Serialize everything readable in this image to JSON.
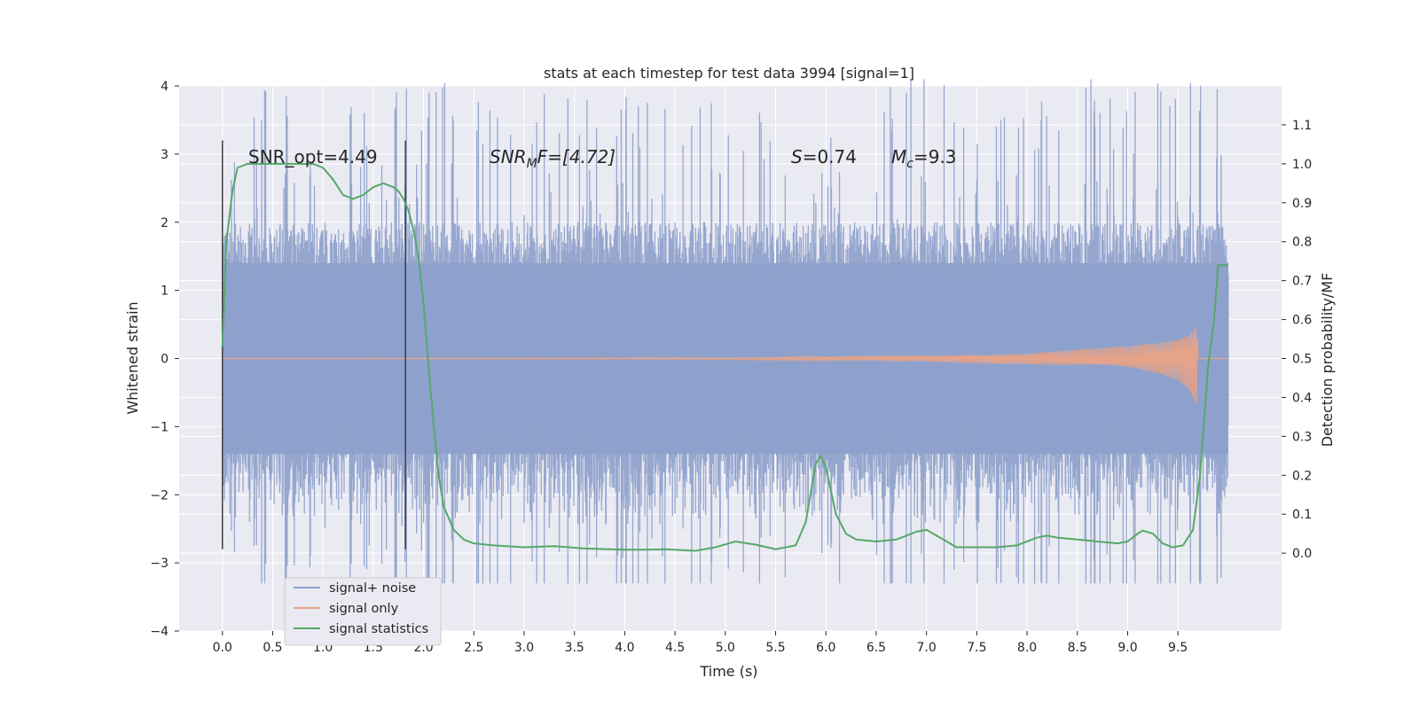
{
  "chart_data": {
    "type": "line",
    "title": "stats at each timestep for test data 3994 [signal=1]",
    "xlabel": "Time (s)",
    "ylabel": "Whitened strain",
    "y2label": "Detection probability/MF",
    "xlim": [
      -0.43,
      10.53
    ],
    "ylim": [
      -4.0,
      4.0
    ],
    "y2lim": [
      -0.2,
      1.2
    ],
    "xticks": [
      "0.0",
      "0.5",
      "1.0",
      "1.5",
      "2.0",
      "2.5",
      "3.0",
      "3.5",
      "4.0",
      "4.5",
      "5.0",
      "5.5",
      "6.0",
      "6.5",
      "7.0",
      "7.5",
      "8.0",
      "8.5",
      "9.0",
      "9.5"
    ],
    "yticks": [
      "4",
      "3",
      "2",
      "1",
      "0",
      "−1",
      "−2",
      "−3",
      "−4"
    ],
    "y2ticks": [
      "1.1",
      "1.0",
      "0.9",
      "0.8",
      "0.7",
      "0.6",
      "0.5",
      "0.4",
      "0.3",
      "0.2",
      "0.1",
      "0.0"
    ],
    "grid": true,
    "legend_position": "lower-left",
    "annotations": {
      "snr_opt": "SNR_opt=4.49",
      "snr_mf_main": "SNR",
      "snr_mf_sub": "M",
      "snr_mf_rest": "F=[4.72]",
      "s_main": "S",
      "s_rest": "=0.74",
      "mc_main": "M",
      "mc_sub": "c",
      "mc_rest": "=9.3"
    },
    "markers": [
      {
        "x": 0.0,
        "y_range": [
          -2.8,
          3.2
        ]
      },
      {
        "x": 1.82,
        "y_range": [
          -2.8,
          3.2
        ]
      }
    ],
    "series": [
      {
        "name": "signal+ noise",
        "color": "#8da0cb",
        "x_range": [
          0.0,
          10.0
        ],
        "samples": 2000,
        "core_amplitude": 2.0,
        "peak_envelope": [
          -3.3,
          4.1
        ]
      },
      {
        "name": "signal only",
        "color": "#e5a389",
        "x_range": [
          0.0,
          10.0
        ],
        "envelope_x": [
          0.0,
          5.0,
          6.0,
          7.0,
          8.0,
          8.5,
          9.0,
          9.3,
          9.5,
          9.6,
          9.65,
          9.69,
          9.7,
          10.0
        ],
        "envelope_amp": [
          0.0,
          0.01,
          0.03,
          0.05,
          0.09,
          0.13,
          0.18,
          0.25,
          0.34,
          0.45,
          0.58,
          0.72,
          0.0,
          0.0
        ]
      },
      {
        "name": "signal statistics",
        "color": "#55a868",
        "x": [
          0.0,
          0.04,
          0.1,
          0.15,
          0.25,
          0.4,
          0.6,
          0.8,
          0.9,
          1.0,
          1.1,
          1.2,
          1.3,
          1.4,
          1.5,
          1.6,
          1.7,
          1.75,
          1.8,
          1.85,
          1.9,
          1.95,
          2.0,
          2.05,
          2.1,
          2.15,
          2.2,
          2.3,
          2.4,
          2.5,
          2.7,
          3.0,
          3.3,
          3.6,
          4.0,
          4.2,
          4.4,
          4.7,
          4.9,
          5.1,
          5.3,
          5.5,
          5.7,
          5.8,
          5.9,
          5.95,
          6.0,
          6.1,
          6.2,
          6.3,
          6.5,
          6.7,
          6.9,
          7.0,
          7.1,
          7.3,
          7.5,
          7.7,
          7.9,
          8.1,
          8.2,
          8.3,
          8.5,
          8.7,
          8.9,
          9.0,
          9.1,
          9.15,
          9.25,
          9.35,
          9.45,
          9.55,
          9.65,
          9.72,
          9.8,
          9.86,
          9.9,
          9.95,
          10.0
        ],
        "y": [
          0.53,
          0.8,
          0.93,
          0.99,
          1.0,
          1.0,
          1.0,
          1.0,
          1.0,
          0.99,
          0.96,
          0.92,
          0.91,
          0.92,
          0.94,
          0.95,
          0.94,
          0.93,
          0.91,
          0.88,
          0.83,
          0.76,
          0.64,
          0.48,
          0.33,
          0.2,
          0.12,
          0.06,
          0.035,
          0.025,
          0.02,
          0.015,
          0.018,
          0.012,
          0.009,
          0.009,
          0.01,
          0.006,
          0.015,
          0.03,
          0.022,
          0.01,
          0.02,
          0.08,
          0.23,
          0.25,
          0.22,
          0.1,
          0.05,
          0.035,
          0.03,
          0.035,
          0.055,
          0.06,
          0.045,
          0.015,
          0.015,
          0.015,
          0.02,
          0.04,
          0.045,
          0.04,
          0.035,
          0.03,
          0.025,
          0.03,
          0.05,
          0.058,
          0.05,
          0.025,
          0.015,
          0.02,
          0.06,
          0.2,
          0.48,
          0.6,
          0.74,
          0.74,
          0.74
        ]
      }
    ]
  }
}
